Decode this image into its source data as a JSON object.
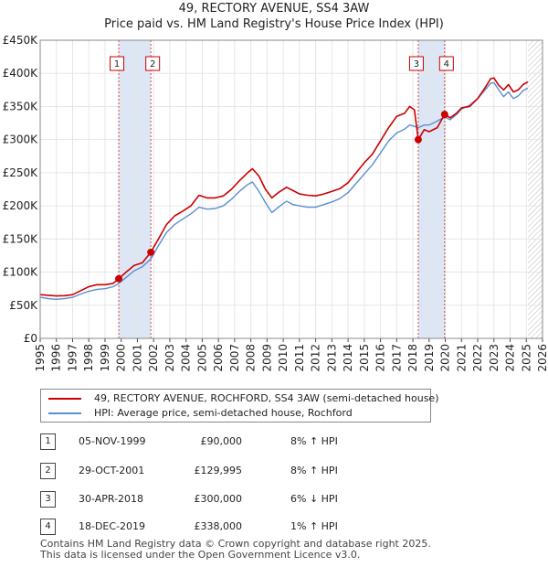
{
  "title_line1": "49, RECTORY AVENUE, SS4 3AW",
  "title_line2": "Price paid vs. HM Land Registry's House Price Index (HPI)",
  "colors": {
    "property": "#cc0000",
    "hpi": "#5b8fd0",
    "shade": "#dde6f5",
    "grid": "#e6e6e6"
  },
  "chart_data": {
    "type": "line",
    "title": "Price paid vs. HM Land Registry's House Price Index (HPI)",
    "xlabel": "",
    "ylabel": "",
    "xlim": [
      1995,
      2026
    ],
    "ylim": [
      0,
      450000
    ],
    "x_ticks": [
      "1995",
      "1996",
      "1997",
      "1998",
      "1999",
      "2000",
      "2001",
      "2002",
      "2003",
      "2004",
      "2005",
      "2006",
      "2007",
      "2008",
      "2009",
      "2010",
      "2011",
      "2012",
      "2013",
      "2014",
      "2015",
      "2016",
      "2017",
      "2018",
      "2019",
      "2020",
      "2021",
      "2022",
      "2023",
      "2024",
      "2025",
      "2026"
    ],
    "y_ticks": [
      {
        "value": 0,
        "label": "£0"
      },
      {
        "value": 50000,
        "label": "£50K"
      },
      {
        "value": 100000,
        "label": "£100K"
      },
      {
        "value": 150000,
        "label": "£150K"
      },
      {
        "value": 200000,
        "label": "£200K"
      },
      {
        "value": 250000,
        "label": "£250K"
      },
      {
        "value": 300000,
        "label": "£300K"
      },
      {
        "value": 350000,
        "label": "£350K"
      },
      {
        "value": 400000,
        "label": "£400K"
      },
      {
        "value": 450000,
        "label": "£450K"
      }
    ],
    "grid": true,
    "forecast_from": 2025.1,
    "shaded_periods": [
      [
        1999.85,
        2001.83
      ],
      [
        2018.33,
        2019.96
      ]
    ],
    "series": [
      {
        "name": "49, RECTORY AVENUE, ROCHFORD, SS4 3AW (semi-detached house)",
        "color": "#cc0000",
        "points": [
          [
            1995.0,
            66000
          ],
          [
            1995.5,
            65000
          ],
          [
            1996.0,
            64000
          ],
          [
            1996.5,
            64500
          ],
          [
            1997.0,
            66000
          ],
          [
            1997.5,
            72000
          ],
          [
            1998.0,
            78000
          ],
          [
            1998.5,
            81000
          ],
          [
            1999.0,
            81000
          ],
          [
            1999.5,
            83000
          ],
          [
            1999.85,
            90000
          ],
          [
            2000.3,
            100000
          ],
          [
            2000.8,
            110000
          ],
          [
            2001.3,
            114000
          ],
          [
            2001.83,
            129995
          ],
          [
            2002.3,
            150000
          ],
          [
            2002.8,
            172000
          ],
          [
            2003.3,
            185000
          ],
          [
            2003.8,
            192000
          ],
          [
            2004.3,
            200000
          ],
          [
            2004.8,
            216000
          ],
          [
            2005.3,
            212000
          ],
          [
            2005.8,
            212000
          ],
          [
            2006.3,
            215000
          ],
          [
            2006.8,
            225000
          ],
          [
            2007.3,
            238000
          ],
          [
            2007.8,
            250000
          ],
          [
            2008.1,
            256000
          ],
          [
            2008.5,
            245000
          ],
          [
            2008.9,
            225000
          ],
          [
            2009.3,
            212000
          ],
          [
            2009.7,
            220000
          ],
          [
            2010.2,
            228000
          ],
          [
            2010.6,
            223000
          ],
          [
            2011.0,
            218000
          ],
          [
            2011.5,
            216000
          ],
          [
            2012.0,
            215000
          ],
          [
            2012.5,
            218000
          ],
          [
            2013.0,
            222000
          ],
          [
            2013.5,
            226000
          ],
          [
            2014.0,
            235000
          ],
          [
            2014.5,
            250000
          ],
          [
            2015.0,
            265000
          ],
          [
            2015.5,
            278000
          ],
          [
            2016.0,
            298000
          ],
          [
            2016.5,
            318000
          ],
          [
            2017.0,
            335000
          ],
          [
            2017.5,
            340000
          ],
          [
            2017.8,
            350000
          ],
          [
            2018.1,
            345000
          ],
          [
            2018.33,
            300000
          ],
          [
            2018.7,
            315000
          ],
          [
            2019.0,
            312000
          ],
          [
            2019.5,
            318000
          ],
          [
            2019.96,
            338000
          ],
          [
            2020.3,
            333000
          ],
          [
            2020.7,
            340000
          ],
          [
            2021.0,
            348000
          ],
          [
            2021.5,
            350000
          ],
          [
            2022.0,
            362000
          ],
          [
            2022.5,
            380000
          ],
          [
            2022.8,
            392000
          ],
          [
            2023.0,
            393000
          ],
          [
            2023.3,
            382000
          ],
          [
            2023.6,
            375000
          ],
          [
            2023.9,
            383000
          ],
          [
            2024.2,
            372000
          ],
          [
            2024.5,
            375000
          ],
          [
            2024.8,
            383000
          ],
          [
            2025.1,
            387000
          ]
        ]
      },
      {
        "name": "HPI: Average price, semi-detached house, Rochford",
        "color": "#5b8fd0",
        "points": [
          [
            1995.0,
            62000
          ],
          [
            1995.5,
            60000
          ],
          [
            1996.0,
            59000
          ],
          [
            1996.5,
            60000
          ],
          [
            1997.0,
            62000
          ],
          [
            1997.5,
            67000
          ],
          [
            1998.0,
            71000
          ],
          [
            1998.5,
            74000
          ],
          [
            1999.0,
            75000
          ],
          [
            1999.5,
            78000
          ],
          [
            1999.85,
            83000
          ],
          [
            2000.3,
            92000
          ],
          [
            2000.8,
            102000
          ],
          [
            2001.3,
            108000
          ],
          [
            2001.83,
            120000
          ],
          [
            2002.3,
            140000
          ],
          [
            2002.8,
            160000
          ],
          [
            2003.3,
            172000
          ],
          [
            2003.8,
            180000
          ],
          [
            2004.3,
            188000
          ],
          [
            2004.8,
            198000
          ],
          [
            2005.3,
            195000
          ],
          [
            2005.8,
            196000
          ],
          [
            2006.3,
            200000
          ],
          [
            2006.8,
            210000
          ],
          [
            2007.3,
            222000
          ],
          [
            2007.8,
            232000
          ],
          [
            2008.1,
            236000
          ],
          [
            2008.5,
            222000
          ],
          [
            2008.9,
            205000
          ],
          [
            2009.3,
            190000
          ],
          [
            2009.7,
            198000
          ],
          [
            2010.2,
            207000
          ],
          [
            2010.6,
            202000
          ],
          [
            2011.0,
            200000
          ],
          [
            2011.5,
            198000
          ],
          [
            2012.0,
            198000
          ],
          [
            2012.5,
            202000
          ],
          [
            2013.0,
            206000
          ],
          [
            2013.5,
            211000
          ],
          [
            2014.0,
            220000
          ],
          [
            2014.5,
            234000
          ],
          [
            2015.0,
            248000
          ],
          [
            2015.5,
            262000
          ],
          [
            2016.0,
            280000
          ],
          [
            2016.5,
            298000
          ],
          [
            2017.0,
            310000
          ],
          [
            2017.5,
            316000
          ],
          [
            2017.8,
            322000
          ],
          [
            2018.1,
            320000
          ],
          [
            2018.33,
            318000
          ],
          [
            2018.7,
            322000
          ],
          [
            2019.0,
            322000
          ],
          [
            2019.5,
            328000
          ],
          [
            2019.96,
            334000
          ],
          [
            2020.3,
            330000
          ],
          [
            2020.7,
            338000
          ],
          [
            2021.0,
            346000
          ],
          [
            2021.5,
            352000
          ],
          [
            2022.0,
            362000
          ],
          [
            2022.5,
            376000
          ],
          [
            2022.8,
            385000
          ],
          [
            2023.0,
            386000
          ],
          [
            2023.3,
            375000
          ],
          [
            2023.6,
            365000
          ],
          [
            2023.9,
            372000
          ],
          [
            2024.2,
            362000
          ],
          [
            2024.5,
            366000
          ],
          [
            2024.8,
            374000
          ],
          [
            2025.1,
            378000
          ]
        ]
      }
    ],
    "sales": [
      {
        "num": "1",
        "x": 1999.85,
        "price": 90000
      },
      {
        "num": "2",
        "x": 2001.83,
        "price": 129995
      },
      {
        "num": "3",
        "x": 2018.33,
        "price": 300000
      },
      {
        "num": "4",
        "x": 2019.96,
        "price": 338000
      }
    ]
  },
  "legend": {
    "property_label": "49, RECTORY AVENUE, ROCHFORD, SS4 3AW (semi-detached house)",
    "hpi_label": "HPI: Average price, semi-detached house, Rochford"
  },
  "sales_table": [
    {
      "num": "1",
      "date": "05-NOV-1999",
      "price": "£90,000",
      "hpi": "8% ↑ HPI"
    },
    {
      "num": "2",
      "date": "29-OCT-2001",
      "price": "£129,995",
      "hpi": "8% ↑ HPI"
    },
    {
      "num": "3",
      "date": "30-APR-2018",
      "price": "£300,000",
      "hpi": "6% ↓ HPI"
    },
    {
      "num": "4",
      "date": "18-DEC-2019",
      "price": "£338,000",
      "hpi": "1% ↑ HPI"
    }
  ],
  "footer_line1": "Contains HM Land Registry data © Crown copyright and database right 2025.",
  "footer_line2": "This data is licensed under the Open Government Licence v3.0."
}
